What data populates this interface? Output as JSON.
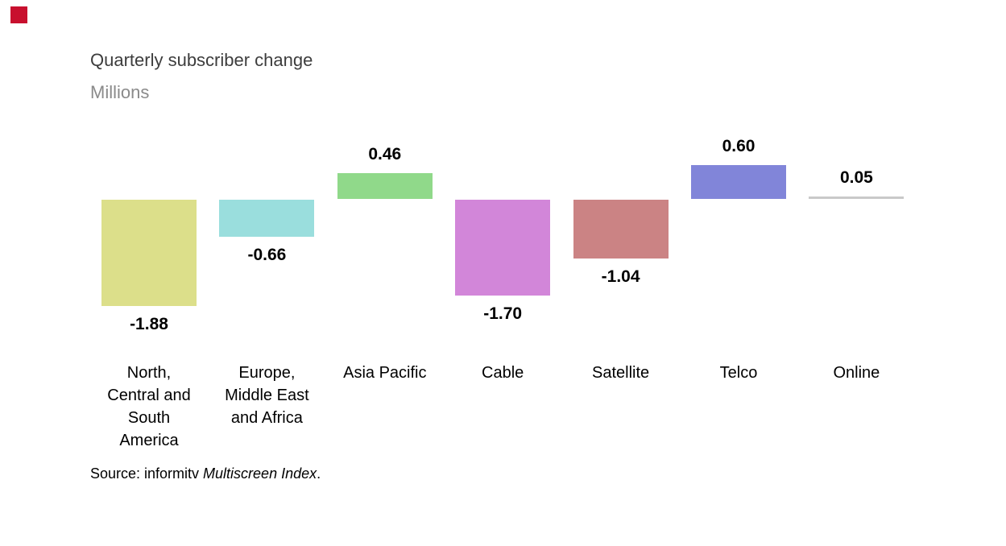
{
  "brand": {
    "logo_color": "#c8102e"
  },
  "header": {
    "title": "Quarterly subscriber change",
    "subtitle": "Millions"
  },
  "chart_data": {
    "type": "bar",
    "title": "Quarterly subscriber change",
    "unit_label": "Millions",
    "orientation": "vertical",
    "categories": [
      "North,\nCentral and\nSouth\nAmerica",
      "Europe,\nMiddle East\nand Africa",
      "Asia Pacific",
      "Cable",
      "Satellite",
      "Telco",
      "Online"
    ],
    "values": [
      -1.88,
      -0.66,
      0.46,
      -1.7,
      -1.04,
      0.6,
      0.05
    ],
    "value_labels": [
      "-1.88",
      "-0.66",
      "0.46",
      "-1.70",
      "-1.04",
      "0.60",
      "0.05"
    ],
    "bar_colors": [
      "#dcdf8a",
      "#9adedd",
      "#90d98a",
      "#d286d9",
      "#cb8384",
      "#8185d9",
      "#c9c9c9"
    ],
    "ylim": [
      -2.0,
      0.8
    ],
    "baseline": 0,
    "gridlines": false,
    "axis_line_shown": false,
    "legend": "none",
    "value_labels_shown": true
  },
  "source": {
    "prefix": "Source: informitv ",
    "italic": "Multiscreen Index",
    "suffix": "."
  },
  "colors": {
    "title_text": "#3d3d3d",
    "subtitle_text": "#8a8a8a",
    "value_label_text": "#000000",
    "category_label_text": "#000000",
    "source_text": "#000000",
    "background": "#ffffff"
  }
}
